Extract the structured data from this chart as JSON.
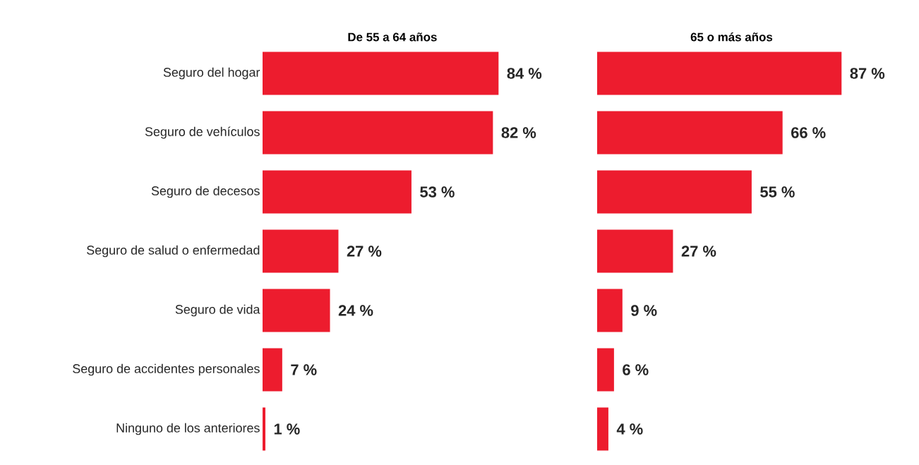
{
  "chart_data": [
    {
      "type": "bar",
      "orientation": "horizontal",
      "title": "De 55 a 64 años",
      "categories": [
        "Seguro del hogar",
        "Seguro de vehículos",
        "Seguro de decesos",
        "Seguro de salud o enfermedad",
        "Seguro de vida",
        "Seguro de accidentes personales",
        "Ninguno de los anteriores"
      ],
      "values": [
        84,
        82,
        53,
        27,
        24,
        7,
        1
      ],
      "value_labels": [
        "84 %",
        "82 %",
        "53 %",
        "27 %",
        "24 %",
        "7 %",
        "1 %"
      ],
      "color": "#ed1c2e",
      "tick_labels": "y"
    },
    {
      "type": "bar",
      "orientation": "horizontal",
      "title": "65 o más años",
      "categories": [
        null,
        null,
        null,
        null,
        null,
        null,
        null
      ],
      "values": [
        87,
        66,
        55,
        27,
        9,
        6,
        4
      ],
      "value_labels": [
        "87 %",
        "66 %",
        "55 %",
        "27 %",
        "9 %",
        "6 %",
        "4 %"
      ],
      "color": "#ed1c2e",
      "tick_labels": false
    }
  ]
}
